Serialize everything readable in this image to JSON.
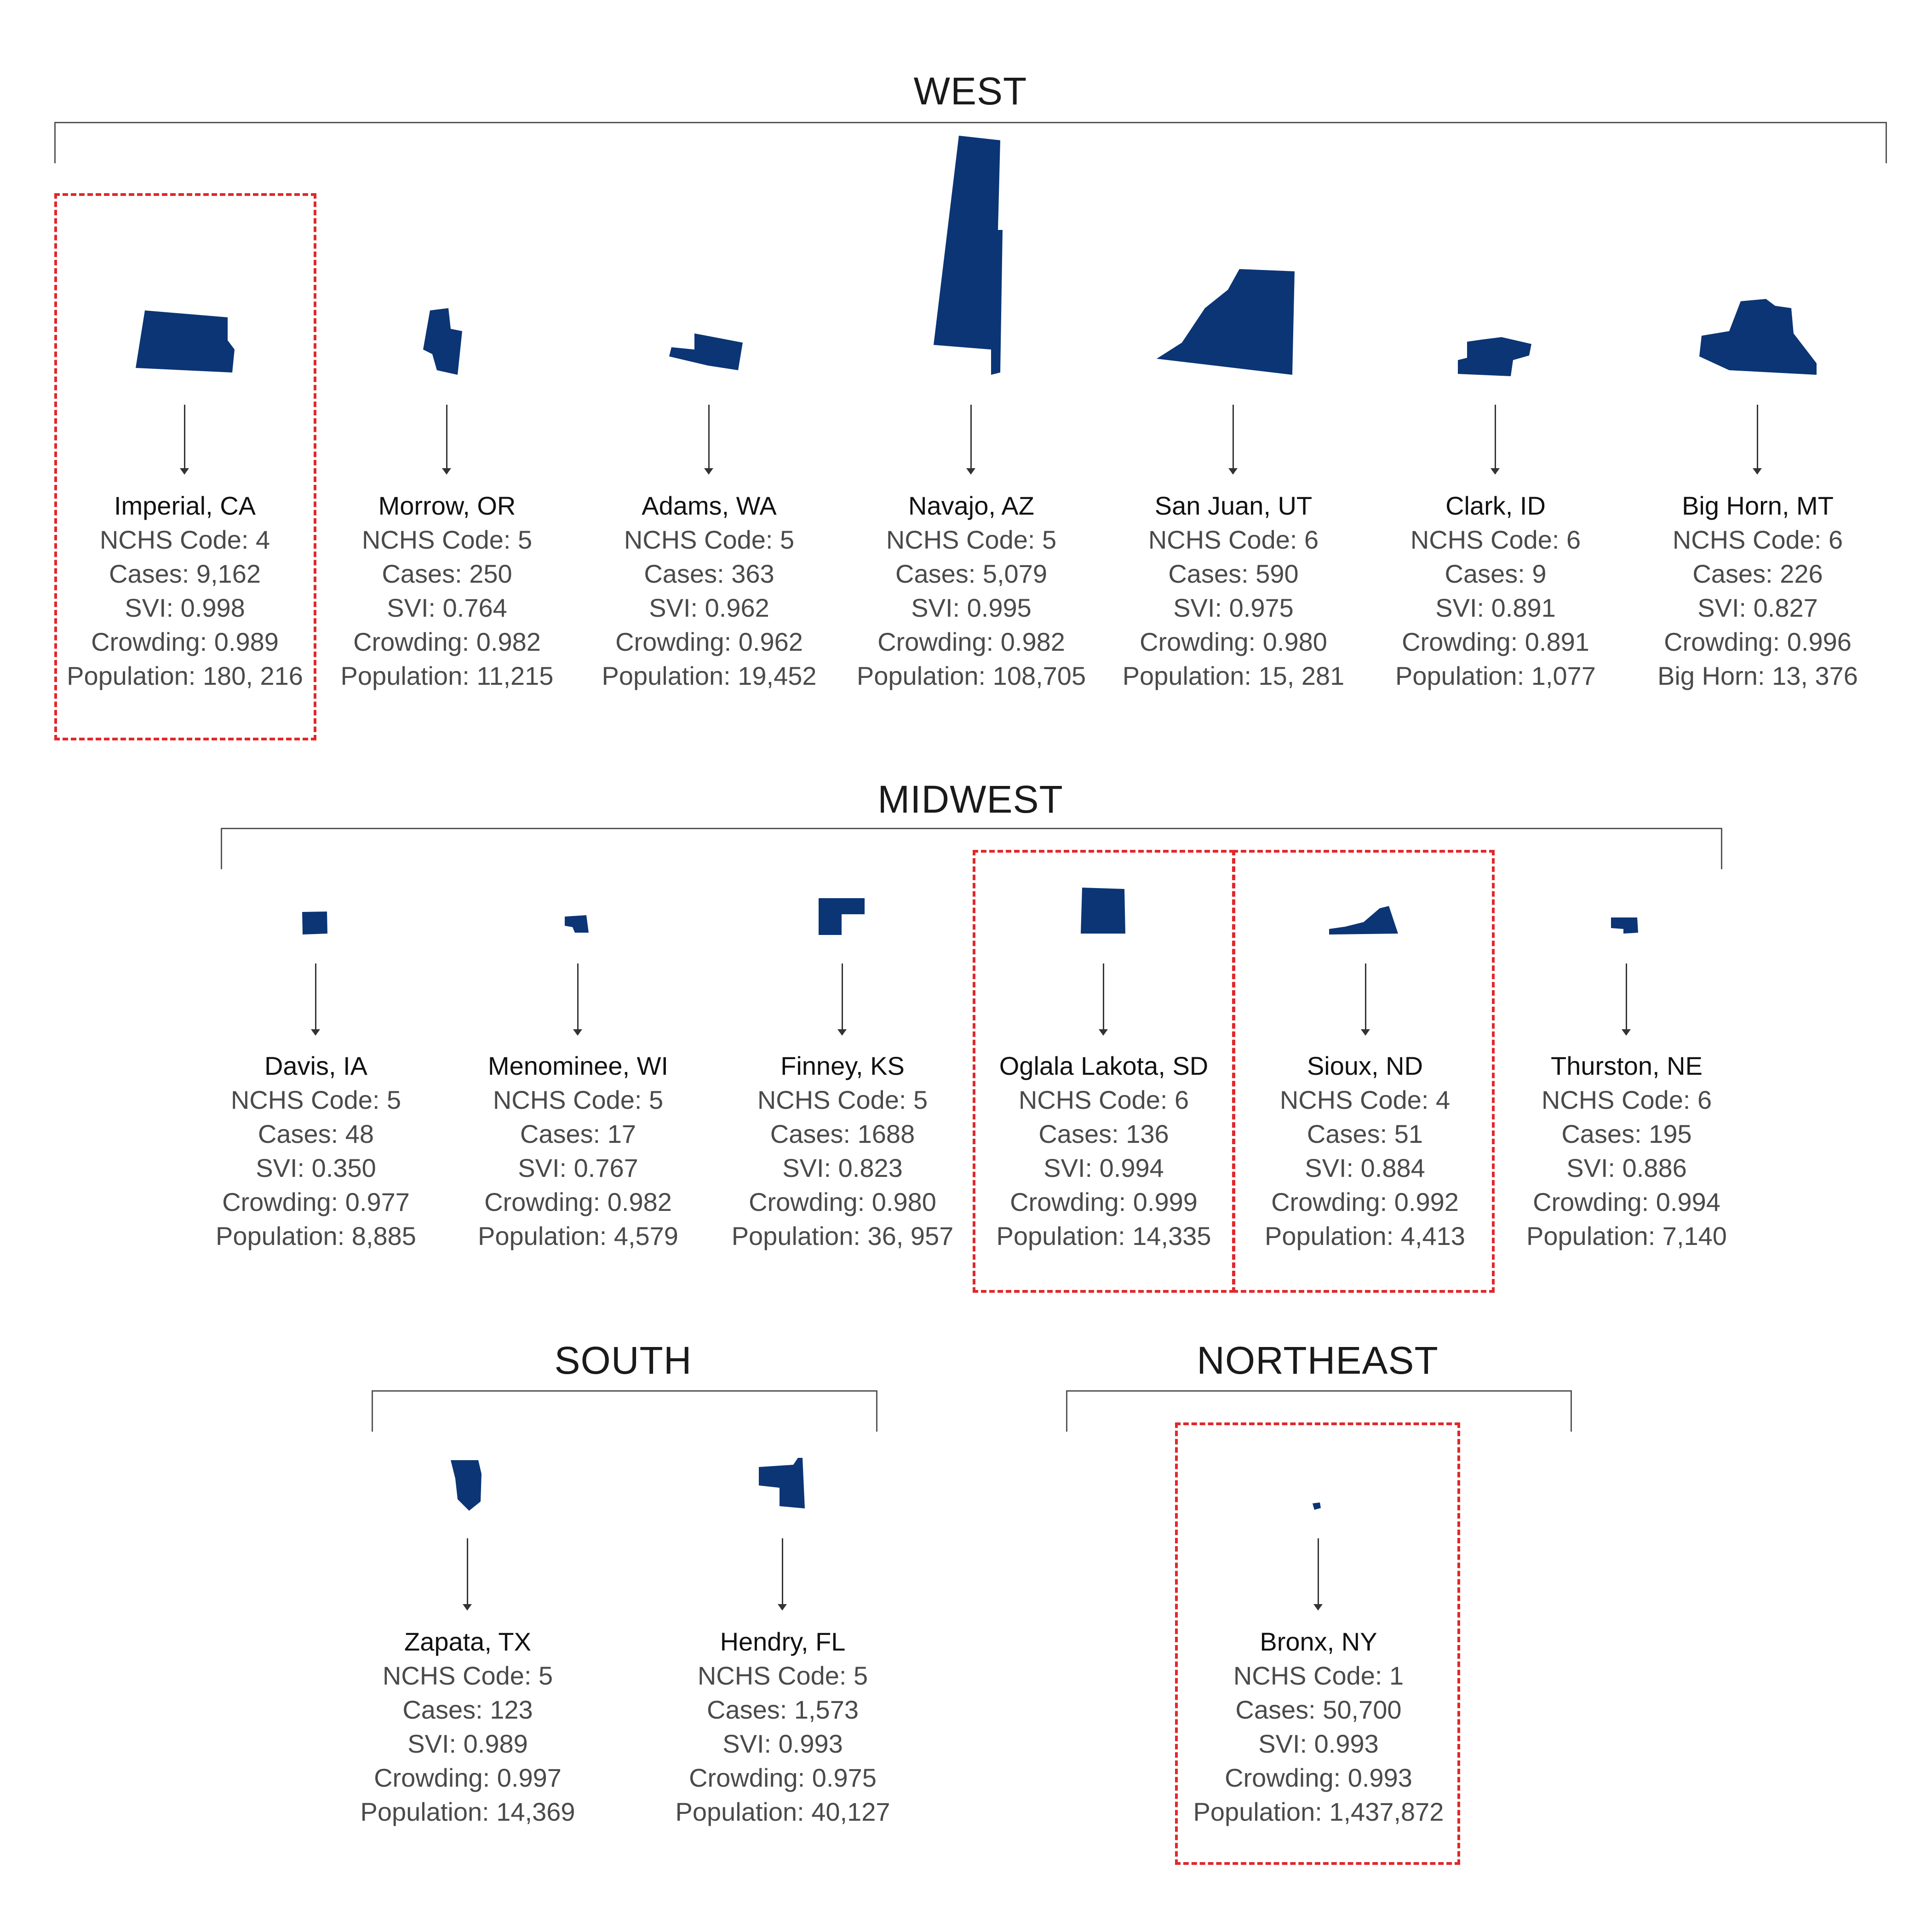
{
  "colors": {
    "county_fill": "#0b3575",
    "highlight": "#e0282c"
  },
  "regions": {
    "west": "WEST",
    "midwest": "MIDWEST",
    "south": "SOUTH",
    "northeast": "NORTHEAST"
  },
  "counties": {
    "imperial": {
      "name": "Imperial, CA",
      "nchs": "NCHS Code: 4",
      "cases": "Cases: 9,162",
      "svi": "SVI: 0.998",
      "crowding": "Crowding: 0.989",
      "population": "Population: 180, 216",
      "highlighted": true
    },
    "morrow": {
      "name": "Morrow, OR",
      "nchs": "NCHS Code: 5",
      "cases": "Cases: 250",
      "svi": "SVI: 0.764",
      "crowding": "Crowding: 0.982",
      "population": "Population: 11,215"
    },
    "adams": {
      "name": "Adams, WA",
      "nchs": "NCHS Code: 5",
      "cases": "Cases: 363",
      "svi": "SVI: 0.962",
      "crowding": "Crowding: 0.962",
      "population": "Population: 19,452"
    },
    "navajo": {
      "name": "Navajo, AZ",
      "nchs": "NCHS Code: 5",
      "cases": "Cases: 5,079",
      "svi": "SVI: 0.995",
      "crowding": "Crowding: 0.982",
      "population": "Population: 108,705"
    },
    "sanjuan": {
      "name": "San Juan, UT",
      "nchs": "NCHS Code: 6",
      "cases": "Cases: 590",
      "svi": "SVI: 0.975",
      "crowding": "Crowding: 0.980",
      "population": "Population: 15, 281"
    },
    "clark": {
      "name": "Clark, ID",
      "nchs": "NCHS Code: 6",
      "cases": "Cases: 9",
      "svi": "SVI: 0.891",
      "crowding": "Crowding: 0.891",
      "population": "Population: 1,077"
    },
    "bighorn": {
      "name": "Big Horn, MT",
      "nchs": "NCHS Code: 6",
      "cases": "Cases: 226",
      "svi": "SVI: 0.827",
      "crowding": "Crowding: 0.996",
      "population": "Big Horn: 13, 376"
    },
    "davis": {
      "name": "Davis, IA",
      "nchs": "NCHS Code: 5",
      "cases": "Cases: 48",
      "svi": "SVI: 0.350",
      "crowding": "Crowding: 0.977",
      "population": "Population: 8,885"
    },
    "menominee": {
      "name": "Menominee, WI",
      "nchs": "NCHS Code: 5",
      "cases": "Cases: 17",
      "svi": "SVI: 0.767",
      "crowding": "Crowding: 0.982",
      "population": "Population: 4,579"
    },
    "finney": {
      "name": "Finney, KS",
      "nchs": "NCHS Code: 5",
      "cases": "Cases: 1688",
      "svi": "SVI: 0.823",
      "crowding": "Crowding: 0.980",
      "population": "Population: 36, 957"
    },
    "oglala": {
      "name": "Oglala Lakota, SD",
      "nchs": "NCHS Code: 6",
      "cases": "Cases: 136",
      "svi": "SVI: 0.994",
      "crowding": "Crowding: 0.999",
      "population": "Population: 14,335",
      "highlighted": true
    },
    "sioux": {
      "name": "Sioux, ND",
      "nchs": "NCHS Code: 4",
      "cases": "Cases: 51",
      "svi": "SVI: 0.884",
      "crowding": "Crowding: 0.992",
      "population": "Population: 4,413",
      "highlighted": true
    },
    "thurston": {
      "name": "Thurston, NE",
      "nchs": "NCHS Code: 6",
      "cases": "Cases: 195",
      "svi": "SVI: 0.886",
      "crowding": "Crowding: 0.994",
      "population": "Population: 7,140"
    },
    "zapata": {
      "name": "Zapata, TX",
      "nchs": "NCHS Code: 5",
      "cases": "Cases: 123",
      "svi": "SVI: 0.989",
      "crowding": "Crowding: 0.997",
      "population": "Population: 14,369"
    },
    "hendry": {
      "name": "Hendry, FL",
      "nchs": "NCHS Code: 5",
      "cases": "Cases: 1,573",
      "svi": "SVI: 0.993",
      "crowding": "Crowding: 0.975",
      "population": "Population: 40,127"
    },
    "bronx": {
      "name": "Bronx, NY",
      "nchs": "NCHS Code: 1",
      "cases": "Cases: 50,700",
      "svi": "SVI: 0.993",
      "crowding": "Crowding: 0.993",
      "population": "Population: 1,437,872",
      "highlighted": true
    }
  }
}
